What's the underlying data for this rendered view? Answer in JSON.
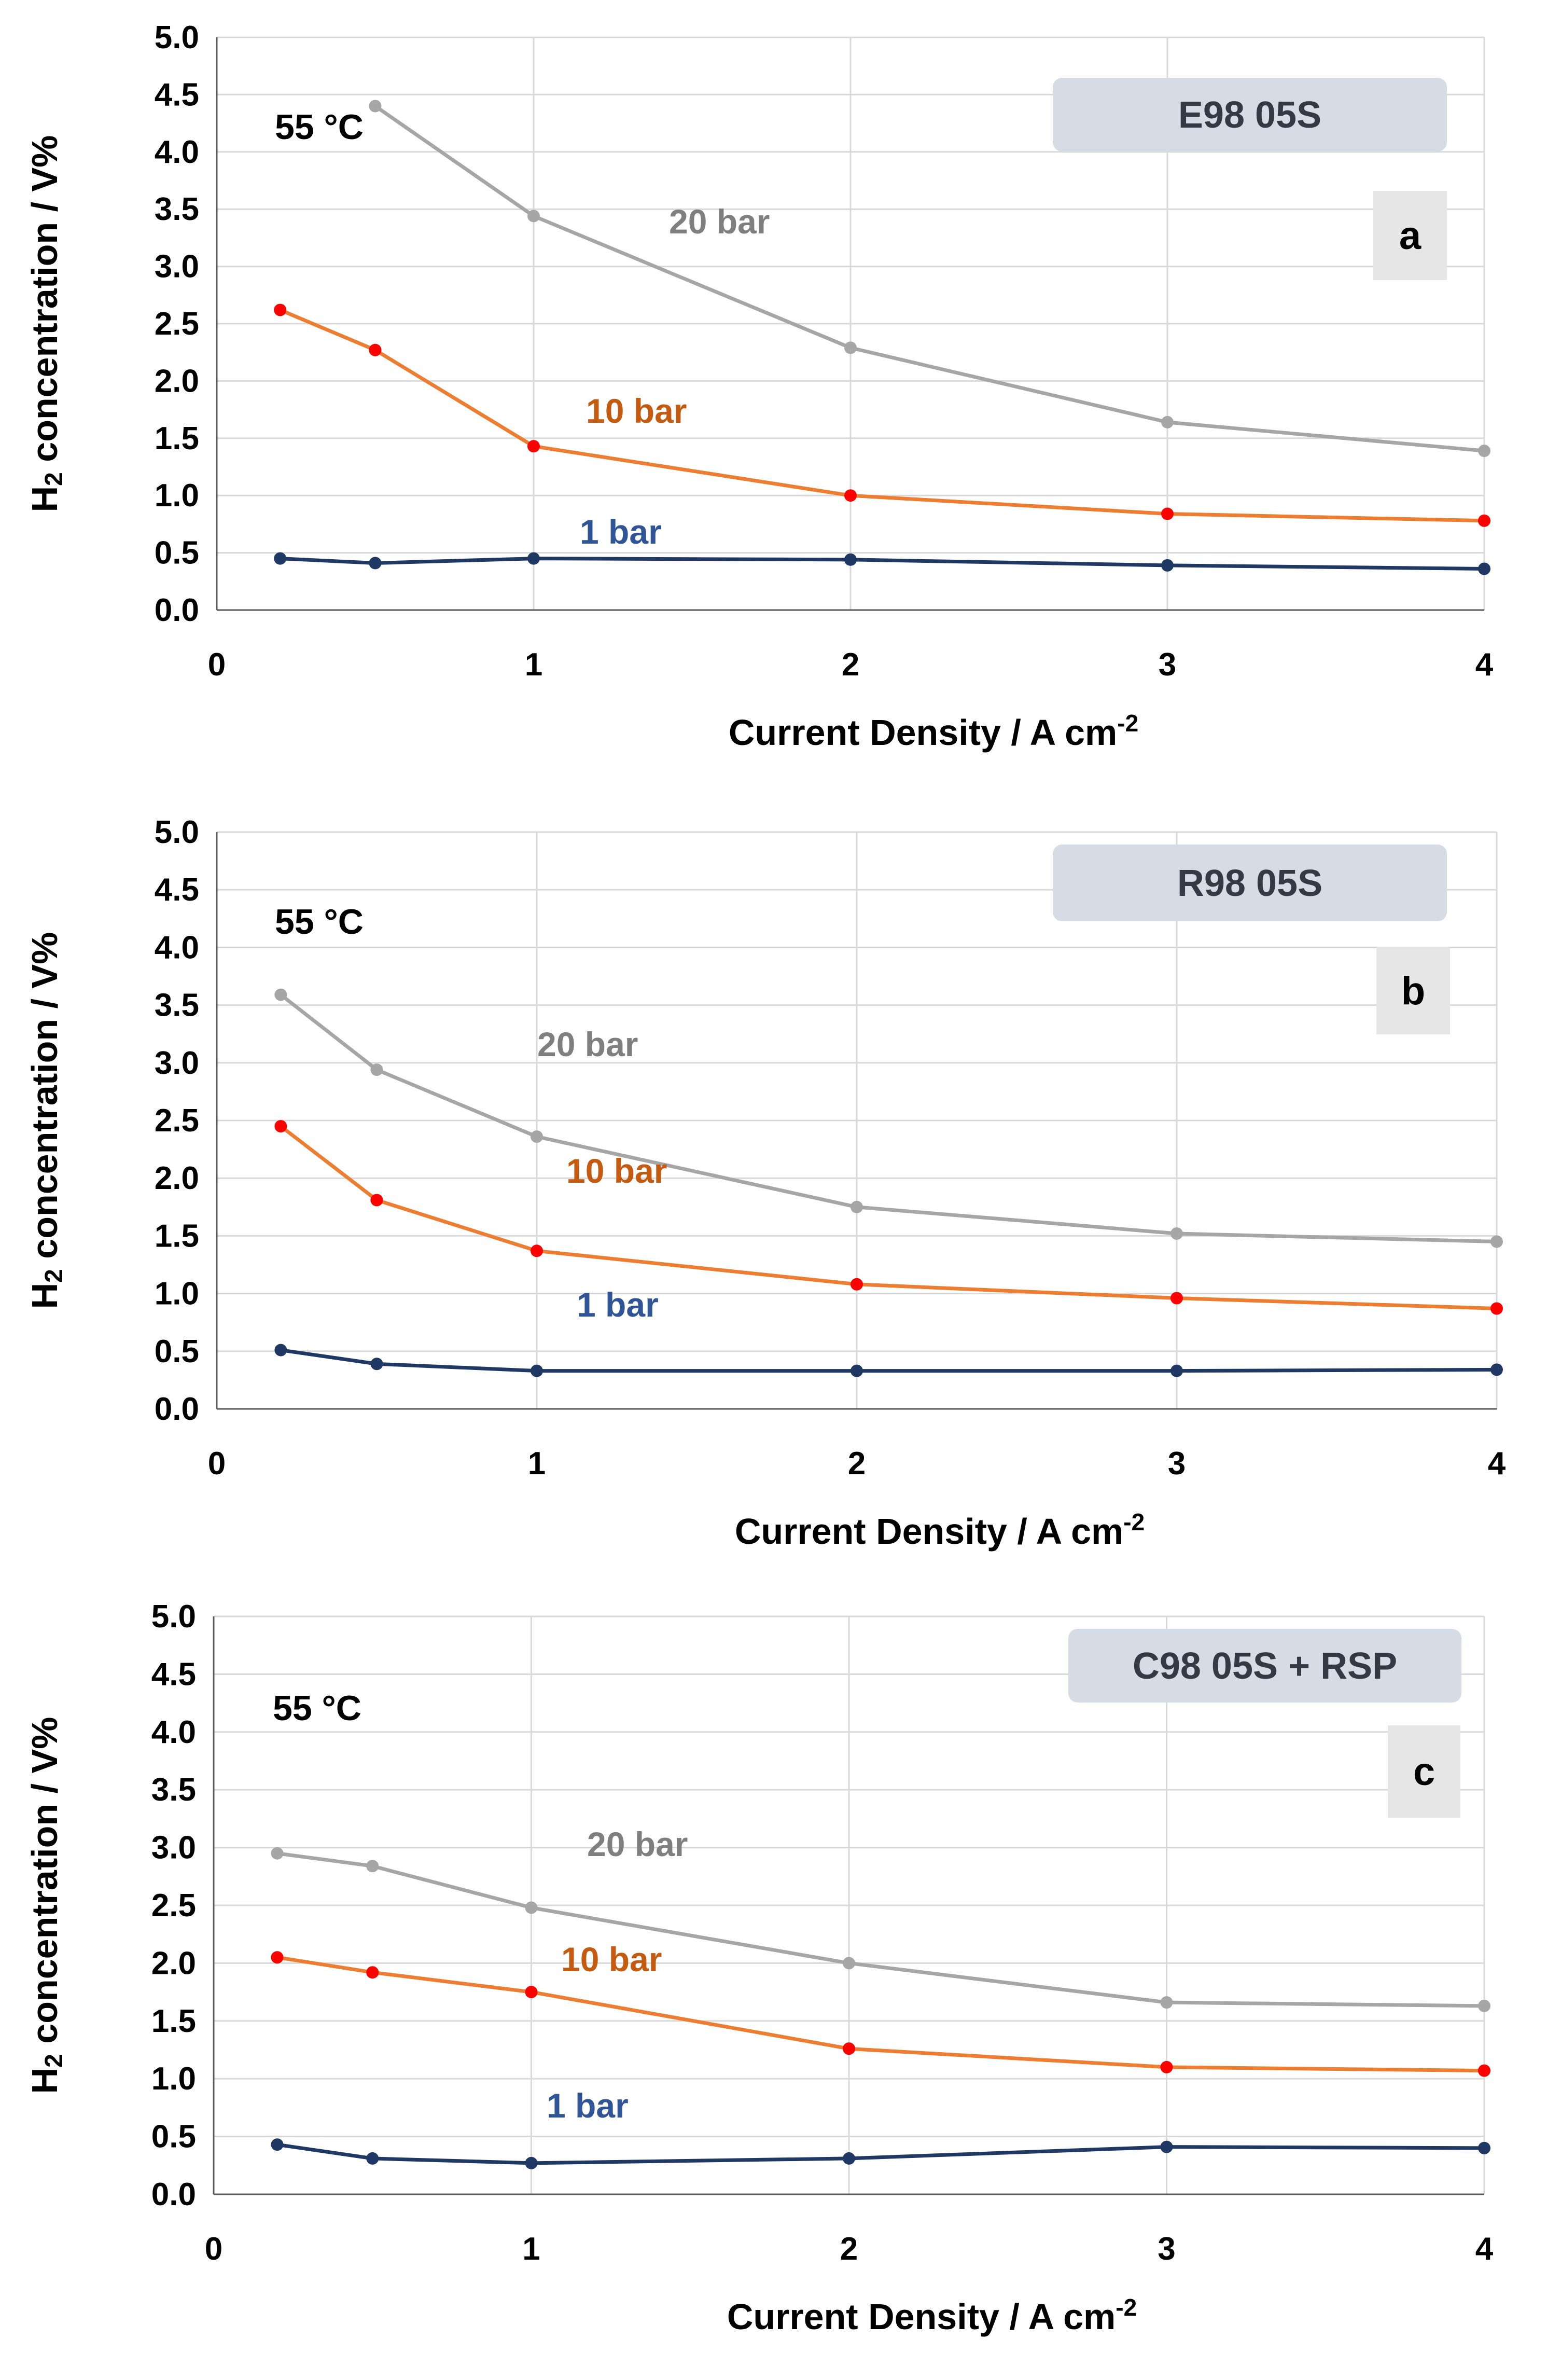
{
  "figure": {
    "ylabel_prefix": "H",
    "ylabel_sub": "2",
    "ylabel_rest": " concentration / V%",
    "xlabel_main": "Current Density  / A cm",
    "xlabel_sup": "-2"
  },
  "chart_data": [
    {
      "type": "line",
      "panel": "a",
      "membrane": "E98 05S",
      "temperature": "55 °C",
      "xlim": [
        0,
        4
      ],
      "ylim": [
        0,
        5
      ],
      "xticks": [
        "0",
        "1",
        "2",
        "3",
        "4"
      ],
      "yticks": [
        "0.0",
        "0.5",
        "1.0",
        "1.5",
        "2.0",
        "2.5",
        "3.0",
        "3.5",
        "4.0",
        "4.5",
        "5.0"
      ],
      "x": [
        0.2,
        0.5,
        1,
        2,
        3,
        4
      ],
      "series": [
        {
          "name": "20 bar",
          "color": "#a6a6a6",
          "marker_color": "#a6a6a6",
          "label_color": "#7f7f7f",
          "values": [
            null,
            4.4,
            3.44,
            2.29,
            1.64,
            1.39
          ]
        },
        {
          "name": "10 bar",
          "color": "#ed7d31",
          "marker_color": "#ff0000",
          "label_color": "#c55a11",
          "values": [
            2.62,
            2.27,
            1.43,
            1.0,
            0.84,
            0.78
          ]
        },
        {
          "name": "1 bar",
          "color": "#1f3864",
          "marker_color": "#1f3864",
          "label_color": "#2f5597",
          "values": [
            0.45,
            0.41,
            0.45,
            0.44,
            0.39,
            0.36
          ]
        }
      ]
    },
    {
      "type": "line",
      "panel": "b",
      "membrane": "R98 05S",
      "temperature": "55 °C",
      "xlim": [
        0,
        4
      ],
      "ylim": [
        0,
        5
      ],
      "xticks": [
        "0",
        "1",
        "2",
        "3",
        "4"
      ],
      "yticks": [
        "0.0",
        "0.5",
        "1.0",
        "1.5",
        "2.0",
        "2.5",
        "3.0",
        "3.5",
        "4.0",
        "4.5",
        "5.0"
      ],
      "x": [
        0.2,
        0.5,
        1,
        2,
        3,
        4
      ],
      "series": [
        {
          "name": "20 bar",
          "color": "#a6a6a6",
          "marker_color": "#a6a6a6",
          "label_color": "#7f7f7f",
          "values": [
            3.59,
            2.94,
            2.36,
            1.75,
            1.52,
            1.45
          ]
        },
        {
          "name": "10 bar",
          "color": "#ed7d31",
          "marker_color": "#ff0000",
          "label_color": "#c55a11",
          "values": [
            2.45,
            1.81,
            1.37,
            1.08,
            0.96,
            0.87
          ]
        },
        {
          "name": "1 bar",
          "color": "#1f3864",
          "marker_color": "#1f3864",
          "label_color": "#2f5597",
          "values": [
            0.51,
            0.39,
            0.33,
            0.33,
            0.33,
            0.34
          ]
        }
      ]
    },
    {
      "type": "line",
      "panel": "c",
      "membrane": "C98 05S + RSP",
      "temperature": "55 °C",
      "xlim": [
        0,
        4
      ],
      "ylim": [
        0,
        5
      ],
      "xticks": [
        "0",
        "1",
        "2",
        "3",
        "4"
      ],
      "yticks": [
        "0.0",
        "0.5",
        "1.0",
        "1.5",
        "2.0",
        "2.5",
        "3.0",
        "3.5",
        "4.0",
        "4.5",
        "5.0"
      ],
      "x": [
        0.2,
        0.5,
        1,
        2,
        3,
        4
      ],
      "series": [
        {
          "name": "20 bar",
          "color": "#a6a6a6",
          "marker_color": "#a6a6a6",
          "label_color": "#7f7f7f",
          "values": [
            2.95,
            2.84,
            2.48,
            2.0,
            1.66,
            1.63
          ]
        },
        {
          "name": "10 bar",
          "color": "#ed7d31",
          "marker_color": "#ff0000",
          "label_color": "#c55a11",
          "values": [
            2.05,
            1.92,
            1.75,
            1.26,
            1.1,
            1.07
          ]
        },
        {
          "name": "1 bar",
          "color": "#1f3864",
          "marker_color": "#1f3864",
          "label_color": "#2f5597",
          "values": [
            0.43,
            0.31,
            0.27,
            0.31,
            0.41,
            0.4
          ]
        }
      ]
    }
  ]
}
